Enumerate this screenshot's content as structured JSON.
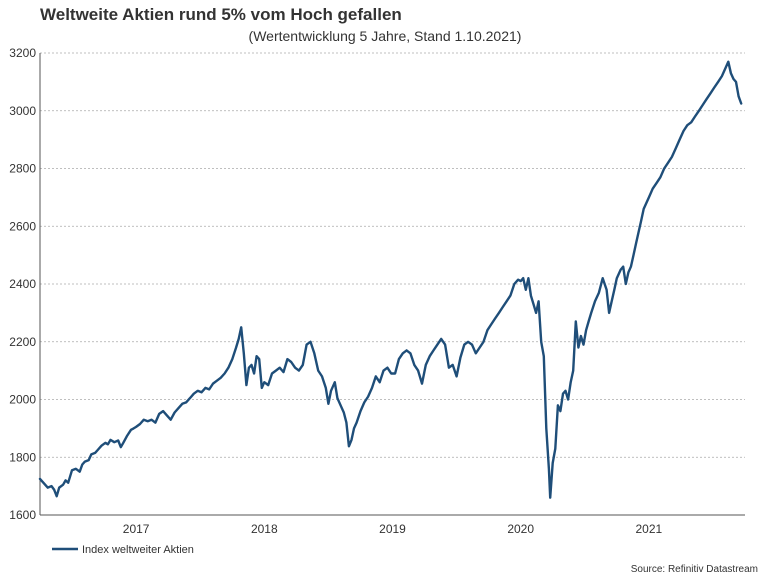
{
  "chart_data": {
    "type": "line",
    "title": "Weltweite Aktien rund 5% vom Hoch gefallen",
    "subtitle": "(Wertentwicklung 5 Jahre, Stand 1.10.2021)",
    "xlabel": "",
    "ylabel": "",
    "ylim": [
      1600,
      3200
    ],
    "yticks": [
      "1600",
      "1800",
      "2000",
      "2200",
      "2400",
      "2600",
      "2800",
      "3000",
      "3200"
    ],
    "xlim": [
      2016.25,
      2021.75
    ],
    "xticks": [
      {
        "label": "2017",
        "x": 2017.0
      },
      {
        "label": "2018",
        "x": 2018.0
      },
      {
        "label": "2019",
        "x": 2019.0
      },
      {
        "label": "2020",
        "x": 2020.0
      },
      {
        "label": "2021",
        "x": 2021.0
      }
    ],
    "grid": true,
    "legend": "bottom-left",
    "source": "Source: Refinitiv Datastream",
    "series": [
      {
        "name": "Index weltweiter Aktien",
        "color": "#1f4e79",
        "points": [
          [
            2016.25,
            1725
          ],
          [
            2016.28,
            1710
          ],
          [
            2016.31,
            1695
          ],
          [
            2016.34,
            1700
          ],
          [
            2016.36,
            1688
          ],
          [
            2016.38,
            1665
          ],
          [
            2016.4,
            1695
          ],
          [
            2016.43,
            1705
          ],
          [
            2016.45,
            1720
          ],
          [
            2016.47,
            1712
          ],
          [
            2016.5,
            1755
          ],
          [
            2016.53,
            1760
          ],
          [
            2016.56,
            1750
          ],
          [
            2016.58,
            1775
          ],
          [
            2016.6,
            1785
          ],
          [
            2016.63,
            1790
          ],
          [
            2016.65,
            1810
          ],
          [
            2016.68,
            1815
          ],
          [
            2016.7,
            1825
          ],
          [
            2016.73,
            1840
          ],
          [
            2016.76,
            1850
          ],
          [
            2016.78,
            1845
          ],
          [
            2016.8,
            1860
          ],
          [
            2016.83,
            1852
          ],
          [
            2016.86,
            1858
          ],
          [
            2016.88,
            1835
          ],
          [
            2016.9,
            1850
          ],
          [
            2016.93,
            1875
          ],
          [
            2016.96,
            1895
          ],
          [
            2016.98,
            1900
          ],
          [
            2017.0,
            1905
          ],
          [
            2017.03,
            1915
          ],
          [
            2017.06,
            1930
          ],
          [
            2017.09,
            1925
          ],
          [
            2017.12,
            1930
          ],
          [
            2017.15,
            1920
          ],
          [
            2017.18,
            1950
          ],
          [
            2017.21,
            1960
          ],
          [
            2017.24,
            1945
          ],
          [
            2017.27,
            1930
          ],
          [
            2017.3,
            1955
          ],
          [
            2017.33,
            1970
          ],
          [
            2017.36,
            1985
          ],
          [
            2017.39,
            1990
          ],
          [
            2017.42,
            2005
          ],
          [
            2017.45,
            2020
          ],
          [
            2017.48,
            2030
          ],
          [
            2017.51,
            2025
          ],
          [
            2017.54,
            2040
          ],
          [
            2017.57,
            2035
          ],
          [
            2017.6,
            2055
          ],
          [
            2017.63,
            2065
          ],
          [
            2017.66,
            2075
          ],
          [
            2017.69,
            2090
          ],
          [
            2017.72,
            2110
          ],
          [
            2017.75,
            2140
          ],
          [
            2017.78,
            2180
          ],
          [
            2017.8,
            2210
          ],
          [
            2017.82,
            2250
          ],
          [
            2017.84,
            2160
          ],
          [
            2017.86,
            2050
          ],
          [
            2017.88,
            2110
          ],
          [
            2017.9,
            2120
          ],
          [
            2017.92,
            2090
          ],
          [
            2017.94,
            2150
          ],
          [
            2017.96,
            2140
          ],
          [
            2017.98,
            2040
          ],
          [
            2018.0,
            2060
          ],
          [
            2018.03,
            2050
          ],
          [
            2018.06,
            2090
          ],
          [
            2018.09,
            2100
          ],
          [
            2018.12,
            2110
          ],
          [
            2018.15,
            2095
          ],
          [
            2018.18,
            2140
          ],
          [
            2018.21,
            2130
          ],
          [
            2018.24,
            2110
          ],
          [
            2018.27,
            2100
          ],
          [
            2018.3,
            2120
          ],
          [
            2018.33,
            2190
          ],
          [
            2018.36,
            2200
          ],
          [
            2018.39,
            2160
          ],
          [
            2018.42,
            2100
          ],
          [
            2018.45,
            2080
          ],
          [
            2018.48,
            2040
          ],
          [
            2018.5,
            1985
          ],
          [
            2018.52,
            2030
          ],
          [
            2018.55,
            2060
          ],
          [
            2018.57,
            2005
          ],
          [
            2018.6,
            1975
          ],
          [
            2018.62,
            1955
          ],
          [
            2018.64,
            1920
          ],
          [
            2018.66,
            1838
          ],
          [
            2018.68,
            1860
          ],
          [
            2018.7,
            1900
          ],
          [
            2018.72,
            1920
          ],
          [
            2018.75,
            1960
          ],
          [
            2018.78,
            1990
          ],
          [
            2018.81,
            2010
          ],
          [
            2018.84,
            2040
          ],
          [
            2018.87,
            2080
          ],
          [
            2018.9,
            2060
          ],
          [
            2018.93,
            2100
          ],
          [
            2018.96,
            2110
          ],
          [
            2018.99,
            2090
          ],
          [
            2019.02,
            2090
          ],
          [
            2019.05,
            2140
          ],
          [
            2019.08,
            2160
          ],
          [
            2019.11,
            2170
          ],
          [
            2019.14,
            2160
          ],
          [
            2019.17,
            2120
          ],
          [
            2019.2,
            2100
          ],
          [
            2019.23,
            2055
          ],
          [
            2019.26,
            2120
          ],
          [
            2019.29,
            2150
          ],
          [
            2019.32,
            2170
          ],
          [
            2019.35,
            2190
          ],
          [
            2019.38,
            2210
          ],
          [
            2019.41,
            2190
          ],
          [
            2019.44,
            2110
          ],
          [
            2019.47,
            2120
          ],
          [
            2019.5,
            2080
          ],
          [
            2019.53,
            2145
          ],
          [
            2019.56,
            2190
          ],
          [
            2019.59,
            2200
          ],
          [
            2019.62,
            2190
          ],
          [
            2019.65,
            2160
          ],
          [
            2019.68,
            2180
          ],
          [
            2019.71,
            2200
          ],
          [
            2019.74,
            2240
          ],
          [
            2019.77,
            2260
          ],
          [
            2019.8,
            2280
          ],
          [
            2019.83,
            2300
          ],
          [
            2019.86,
            2320
          ],
          [
            2019.89,
            2340
          ],
          [
            2019.92,
            2360
          ],
          [
            2019.95,
            2400
          ],
          [
            2019.98,
            2415
          ],
          [
            2020.0,
            2410
          ],
          [
            2020.02,
            2420
          ],
          [
            2020.04,
            2380
          ],
          [
            2020.06,
            2420
          ],
          [
            2020.08,
            2360
          ],
          [
            2020.1,
            2330
          ],
          [
            2020.12,
            2300
          ],
          [
            2020.14,
            2340
          ],
          [
            2020.16,
            2200
          ],
          [
            2020.18,
            2150
          ],
          [
            2020.2,
            1900
          ],
          [
            2020.22,
            1760
          ],
          [
            2020.23,
            1660
          ],
          [
            2020.25,
            1780
          ],
          [
            2020.27,
            1830
          ],
          [
            2020.29,
            1980
          ],
          [
            2020.31,
            1960
          ],
          [
            2020.33,
            2020
          ],
          [
            2020.35,
            2030
          ],
          [
            2020.37,
            2000
          ],
          [
            2020.39,
            2060
          ],
          [
            2020.41,
            2100
          ],
          [
            2020.43,
            2270
          ],
          [
            2020.45,
            2180
          ],
          [
            2020.47,
            2220
          ],
          [
            2020.49,
            2190
          ],
          [
            2020.51,
            2240
          ],
          [
            2020.53,
            2270
          ],
          [
            2020.55,
            2300
          ],
          [
            2020.58,
            2340
          ],
          [
            2020.61,
            2370
          ],
          [
            2020.64,
            2420
          ],
          [
            2020.67,
            2380
          ],
          [
            2020.69,
            2300
          ],
          [
            2020.71,
            2340
          ],
          [
            2020.73,
            2380
          ],
          [
            2020.75,
            2420
          ],
          [
            2020.78,
            2450
          ],
          [
            2020.8,
            2460
          ],
          [
            2020.82,
            2400
          ],
          [
            2020.84,
            2440
          ],
          [
            2020.86,
            2460
          ],
          [
            2020.88,
            2500
          ],
          [
            2020.9,
            2540
          ],
          [
            2020.92,
            2580
          ],
          [
            2020.94,
            2620
          ],
          [
            2020.96,
            2660
          ],
          [
            2020.98,
            2680
          ],
          [
            2021.0,
            2700
          ],
          [
            2021.03,
            2730
          ],
          [
            2021.06,
            2750
          ],
          [
            2021.09,
            2770
          ],
          [
            2021.12,
            2800
          ],
          [
            2021.15,
            2820
          ],
          [
            2021.18,
            2840
          ],
          [
            2021.21,
            2870
          ],
          [
            2021.24,
            2900
          ],
          [
            2021.27,
            2930
          ],
          [
            2021.3,
            2950
          ],
          [
            2021.33,
            2960
          ],
          [
            2021.36,
            2980
          ],
          [
            2021.39,
            3000
          ],
          [
            2021.42,
            3020
          ],
          [
            2021.45,
            3040
          ],
          [
            2021.48,
            3060
          ],
          [
            2021.51,
            3080
          ],
          [
            2021.54,
            3100
          ],
          [
            2021.57,
            3120
          ],
          [
            2021.6,
            3150
          ],
          [
            2021.62,
            3170
          ],
          [
            2021.64,
            3130
          ],
          [
            2021.66,
            3110
          ],
          [
            2021.68,
            3100
          ],
          [
            2021.7,
            3050
          ],
          [
            2021.72,
            3025
          ]
        ]
      }
    ]
  }
}
